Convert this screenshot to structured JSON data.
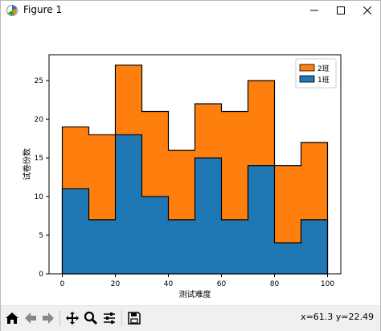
{
  "window": {
    "title": "Figure 1"
  },
  "toolbar": {
    "coords": "x=61.3 y=22.49"
  },
  "colors": {
    "orange": "#ff7f0e",
    "blue": "#1f77b4"
  },
  "chart_data": {
    "type": "bar",
    "stacked": true,
    "histtype": "stepfilled",
    "bin_edges": [
      0,
      10,
      20,
      30,
      40,
      50,
      60,
      70,
      80,
      90,
      100
    ],
    "series": [
      {
        "name": "1班",
        "color": "#1f77b4",
        "values": [
          11,
          7,
          18,
          10,
          7,
          15,
          7,
          14,
          4,
          7
        ]
      },
      {
        "name": "2班",
        "color": "#ff7f0e",
        "values": [
          8,
          11,
          9,
          11,
          9,
          7,
          14,
          11,
          10,
          10
        ]
      }
    ],
    "totals": [
      19,
      18,
      27,
      21,
      16,
      22,
      21,
      25,
      14,
      17
    ],
    "xlabel": "测试难度",
    "ylabel": "试卷份数",
    "xlim": [
      -5,
      105
    ],
    "ylim": [
      0,
      28.35
    ],
    "xticks": [
      0,
      20,
      40,
      60,
      80,
      100
    ],
    "yticks": [
      0,
      5,
      10,
      15,
      20,
      25
    ],
    "legend": {
      "position": "top-right",
      "entries": [
        "2班",
        "1班"
      ]
    }
  }
}
